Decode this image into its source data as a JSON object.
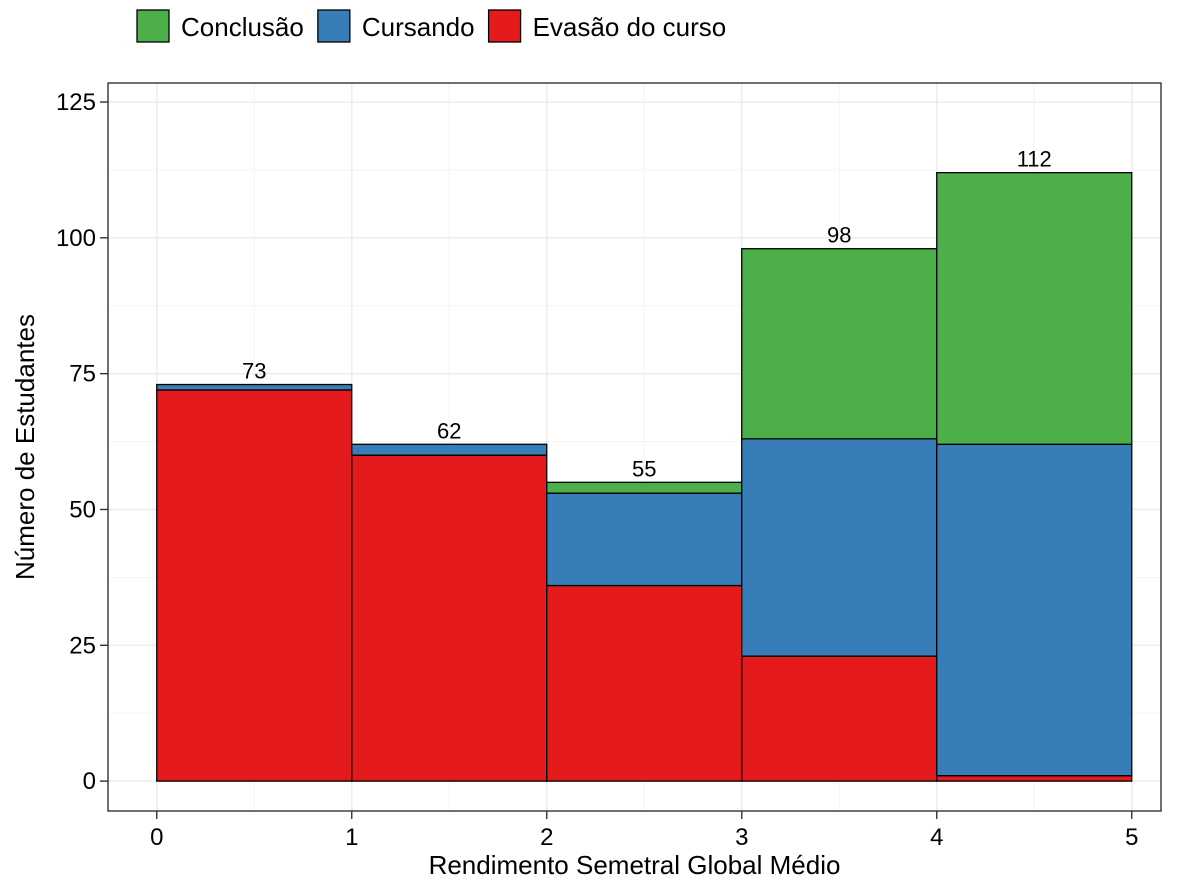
{
  "chart_data": {
    "type": "bar",
    "stacked": true,
    "title": "",
    "xlabel": "Rendimento Semetral Global Médio",
    "ylabel": "Número de Estudantes",
    "bins": [
      [
        0,
        1
      ],
      [
        1,
        2
      ],
      [
        2,
        3
      ],
      [
        3,
        4
      ],
      [
        4,
        5
      ]
    ],
    "xlim": [
      -0.25,
      5.15
    ],
    "ylim": [
      -5.5,
      128.5
    ],
    "xticks": [
      0,
      1,
      2,
      3,
      4,
      5
    ],
    "yticks": [
      0,
      25,
      50,
      75,
      100,
      125
    ],
    "grid": true,
    "legend_position": "top-left",
    "series": [
      {
        "name": "Evasão do curso",
        "color": "#e41a1c",
        "values": [
          72,
          60,
          36,
          23,
          1
        ]
      },
      {
        "name": "Cursando",
        "color": "#377eb8",
        "values": [
          1,
          2,
          17,
          40,
          61
        ]
      },
      {
        "name": "Conclusão",
        "color": "#4daf4a",
        "values": [
          0,
          0,
          2,
          35,
          50
        ]
      }
    ],
    "legend_order": [
      "Conclusão",
      "Cursando",
      "Evasão do curso"
    ],
    "totals": [
      73,
      62,
      55,
      98,
      112
    ]
  }
}
